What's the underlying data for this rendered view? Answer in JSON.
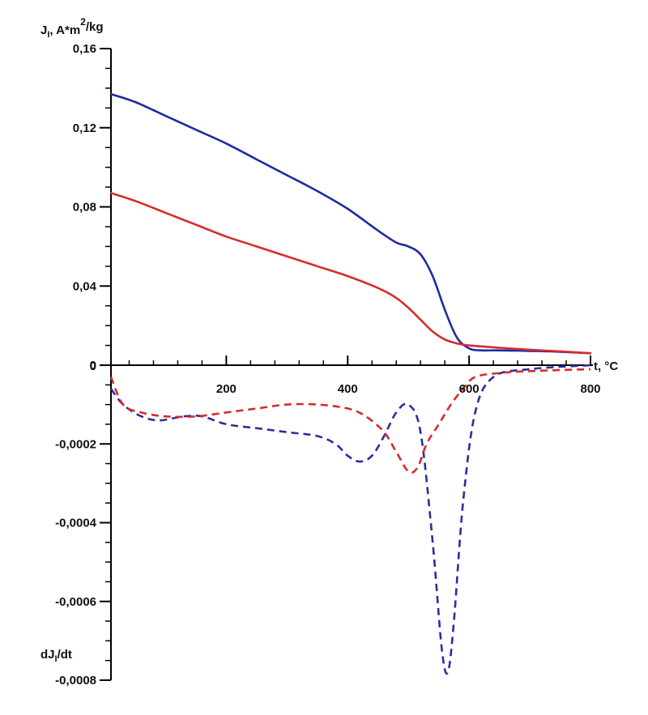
{
  "chart_data": {
    "type": "line",
    "x_axis": {
      "label": "t, °C",
      "range": [
        10,
        800
      ],
      "ticks": [
        200,
        400,
        600,
        800
      ],
      "tick_labels": [
        "200",
        "400",
        "600",
        "800"
      ]
    },
    "y_axis_upper": {
      "label_parts": [
        "J",
        "I",
        ", A*m",
        "2",
        "/kg"
      ],
      "range": [
        0,
        0.16
      ],
      "ticks": [
        0,
        0.04,
        0.08,
        0.12,
        0.16
      ],
      "tick_labels": [
        "0",
        "0,04",
        "0,08",
        "0,12",
        "0,16"
      ]
    },
    "y_axis_lower": {
      "label_parts": [
        "dJ",
        "I",
        "/dt"
      ],
      "range": [
        -0.0008,
        0
      ],
      "ticks": [
        -0.0002,
        -0.0004,
        -0.0006,
        -0.0008
      ],
      "tick_labels": [
        "-0,0002",
        "-0,0004",
        "-0,0006",
        "-0,0008"
      ]
    },
    "series": [
      {
        "axis": "upper",
        "style": "solid",
        "color": "#1f2aa0",
        "x": [
          10,
          50,
          100,
          150,
          200,
          250,
          300,
          350,
          400,
          450,
          480,
          500,
          520,
          540,
          560,
          580,
          600,
          620,
          650,
          700,
          750,
          800
        ],
        "y": [
          0.137,
          0.133,
          0.126,
          0.119,
          0.112,
          0.104,
          0.096,
          0.088,
          0.079,
          0.068,
          0.062,
          0.06,
          0.056,
          0.045,
          0.028,
          0.014,
          0.0085,
          0.0075,
          0.0075,
          0.0072,
          0.0068,
          0.006
        ]
      },
      {
        "axis": "upper",
        "style": "solid",
        "color": "#d42d2d",
        "x": [
          10,
          50,
          100,
          150,
          200,
          250,
          300,
          350,
          400,
          450,
          480,
          500,
          520,
          540,
          560,
          580,
          600,
          650,
          700,
          750,
          800
        ],
        "y": [
          0.087,
          0.083,
          0.077,
          0.071,
          0.065,
          0.06,
          0.055,
          0.05,
          0.045,
          0.039,
          0.034,
          0.029,
          0.023,
          0.017,
          0.013,
          0.011,
          0.01,
          0.0088,
          0.0078,
          0.007,
          0.006
        ]
      },
      {
        "axis": "lower",
        "style": "dashed",
        "color": "#2b2f9e",
        "x": [
          10,
          30,
          60,
          90,
          130,
          160,
          200,
          250,
          300,
          350,
          380,
          400,
          420,
          440,
          460,
          480,
          500,
          520,
          540,
          555,
          565,
          575,
          590,
          610,
          640,
          700,
          800
        ],
        "y": [
          -6e-05,
          -0.0001,
          -0.00013,
          -0.00014,
          -0.00013,
          -0.00013,
          -0.00015,
          -0.00016,
          -0.00017,
          -0.00018,
          -0.0002,
          -0.00023,
          -0.000245,
          -0.00023,
          -0.00018,
          -0.00012,
          -0.0001,
          -0.00017,
          -0.00045,
          -0.00072,
          -0.00078,
          -0.00065,
          -0.00035,
          -0.00012,
          -3e-05,
          -1e-05,
          0
        ]
      },
      {
        "axis": "lower",
        "style": "dashed",
        "color": "#d42d2d",
        "x": [
          10,
          30,
          60,
          100,
          150,
          200,
          250,
          300,
          350,
          400,
          430,
          460,
          480,
          500,
          515,
          530,
          550,
          570,
          590,
          610,
          650,
          700,
          800
        ],
        "y": [
          -3e-05,
          -0.0001,
          -0.00012,
          -0.00013,
          -0.00013,
          -0.00012,
          -0.00011,
          -0.0001,
          -0.0001,
          -0.00011,
          -0.00013,
          -0.00017,
          -0.00022,
          -0.00027,
          -0.00026,
          -0.0002,
          -0.00015,
          -0.0001,
          -6e-05,
          -3e-05,
          -2e-05,
          -1.5e-05,
          -1e-05
        ]
      }
    ],
    "grid": false,
    "legend": "none"
  }
}
